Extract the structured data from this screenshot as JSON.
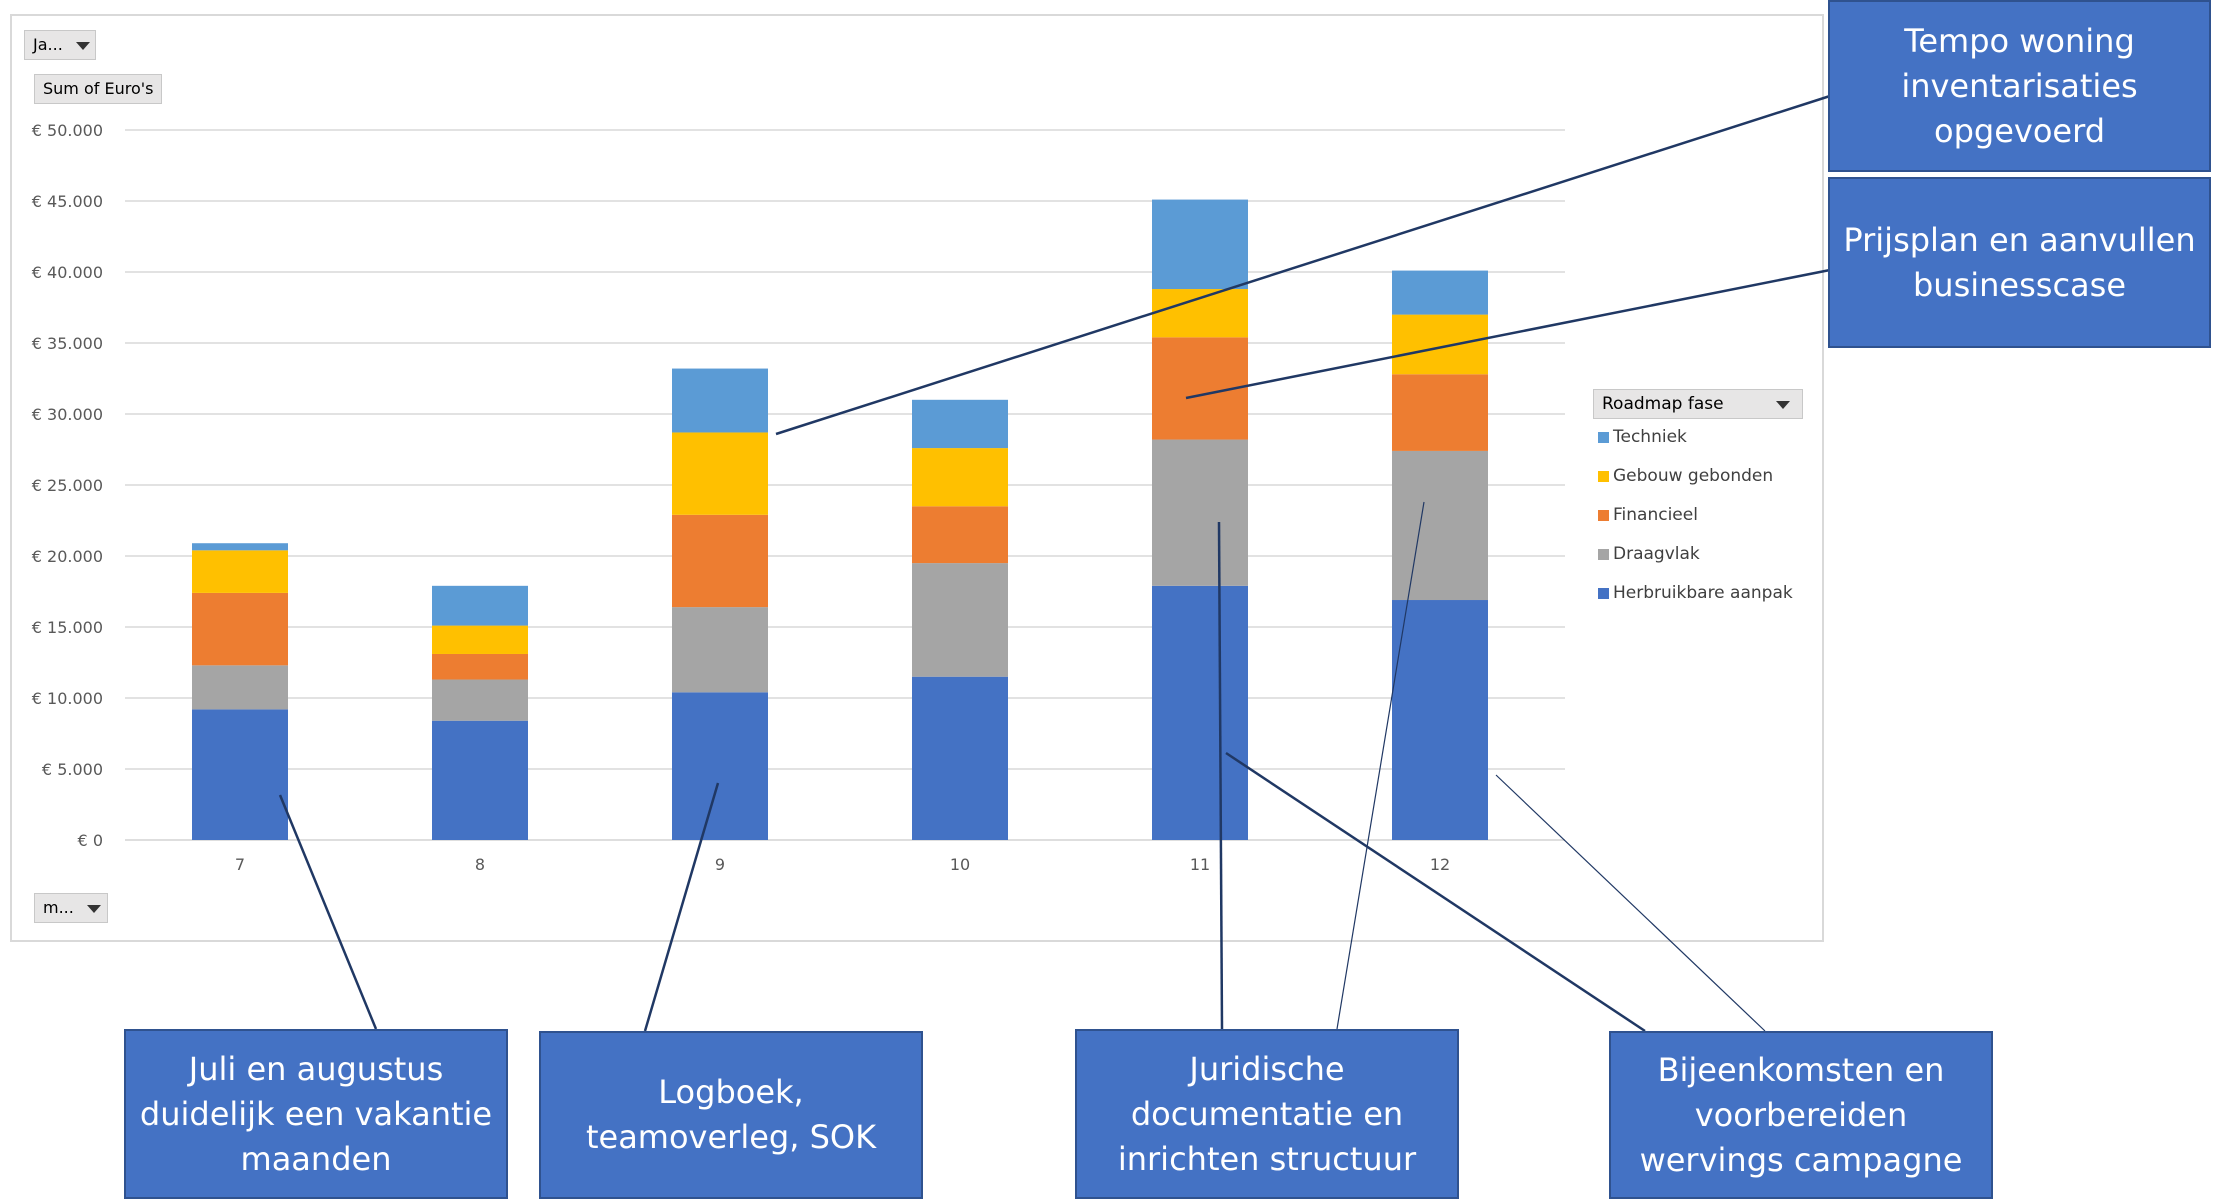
{
  "filters": {
    "year_button": "Ja...",
    "value_field": "Sum of Euro's",
    "month_button": "m..."
  },
  "legend": {
    "title": "Roadmap fase",
    "items": [
      {
        "name": "Techniek",
        "color": "#5b9bd5"
      },
      {
        "name": "Gebouw gebonden",
        "color": "#ffc000"
      },
      {
        "name": "Financieel",
        "color": "#ed7d31"
      },
      {
        "name": "Draagvlak",
        "color": "#a5a5a5"
      },
      {
        "name": "Herbruikbare aanpak",
        "color": "#4472c4"
      }
    ]
  },
  "callouts": {
    "tempo": "Tempo woning inventarisaties opgevoerd",
    "prijsplan": "Prijsplan en aanvullen businesscase",
    "juli": "Juli en augustus duidelijk een vakantie maanden",
    "logboek": "Logboek, teamoverleg, SOK",
    "juridische": "Juridische documentatie en inrichten structuur",
    "bijeenkomsten": "Bijeenkomsten en voorbereiden wervings campagne"
  },
  "chart_data": {
    "type": "bar",
    "stacked": true,
    "title": "",
    "xlabel": "",
    "ylabel": "",
    "categories": [
      "7",
      "8",
      "9",
      "10",
      "11",
      "12"
    ],
    "ylim": [
      0,
      50000
    ],
    "yticks": [
      "€ 0",
      "€ 5.000",
      "€ 10.000",
      "€ 15.000",
      "€ 20.000",
      "€ 25.000",
      "€ 30.000",
      "€ 35.000",
      "€ 40.000",
      "€ 45.000",
      "€ 50.000"
    ],
    "grid": true,
    "legend_position": "right",
    "series": [
      {
        "name": "Herbruikbare aanpak",
        "values": [
          9200,
          8400,
          10400,
          11500,
          17900,
          16900
        ]
      },
      {
        "name": "Draagvlak",
        "values": [
          3100,
          2900,
          6000,
          8000,
          10300,
          10500
        ]
      },
      {
        "name": "Financieel",
        "values": [
          5100,
          1800,
          6500,
          4000,
          7200,
          5400
        ]
      },
      {
        "name": "Gebouw gebonden",
        "values": [
          3000,
          2000,
          5800,
          4100,
          3400,
          4200
        ]
      },
      {
        "name": "Techniek",
        "values": [
          500,
          2800,
          4500,
          3400,
          6300,
          3100
        ]
      }
    ]
  }
}
